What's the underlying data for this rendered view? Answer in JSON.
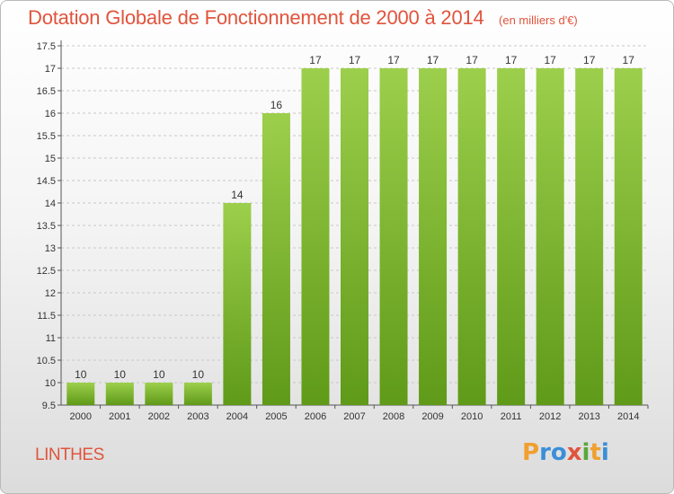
{
  "chart_data": {
    "type": "bar",
    "title": "Dotation Globale de Fonctionnement de 2000 à 2014",
    "subtitle": "(en milliers d'€)",
    "xlabel": "",
    "ylabel": "",
    "categories": [
      "2000",
      "2001",
      "2002",
      "2003",
      "2004",
      "2005",
      "2006",
      "2007",
      "2008",
      "2009",
      "2010",
      "2011",
      "2012",
      "2013",
      "2014"
    ],
    "values": [
      10,
      10,
      10,
      10,
      14,
      16,
      17,
      17,
      17,
      17,
      17,
      17,
      17,
      17,
      17
    ],
    "data_labels": [
      "10",
      "10",
      "10",
      "10",
      "14",
      "16",
      "17",
      "17",
      "17",
      "17",
      "17",
      "17",
      "17",
      "17",
      "17"
    ],
    "ylim": [
      9.5,
      17.5
    ],
    "yticks": [
      "9.5",
      "10",
      "10.5",
      "11",
      "11.5",
      "12",
      "12.5",
      "13",
      "13.5",
      "14",
      "14.5",
      "15",
      "15.5",
      "16",
      "16.5",
      "17",
      "17.5"
    ],
    "grid": true,
    "bar_color": "#7fba2e"
  },
  "footer": {
    "commune": "LINTHES",
    "logo": "Proxiti"
  }
}
